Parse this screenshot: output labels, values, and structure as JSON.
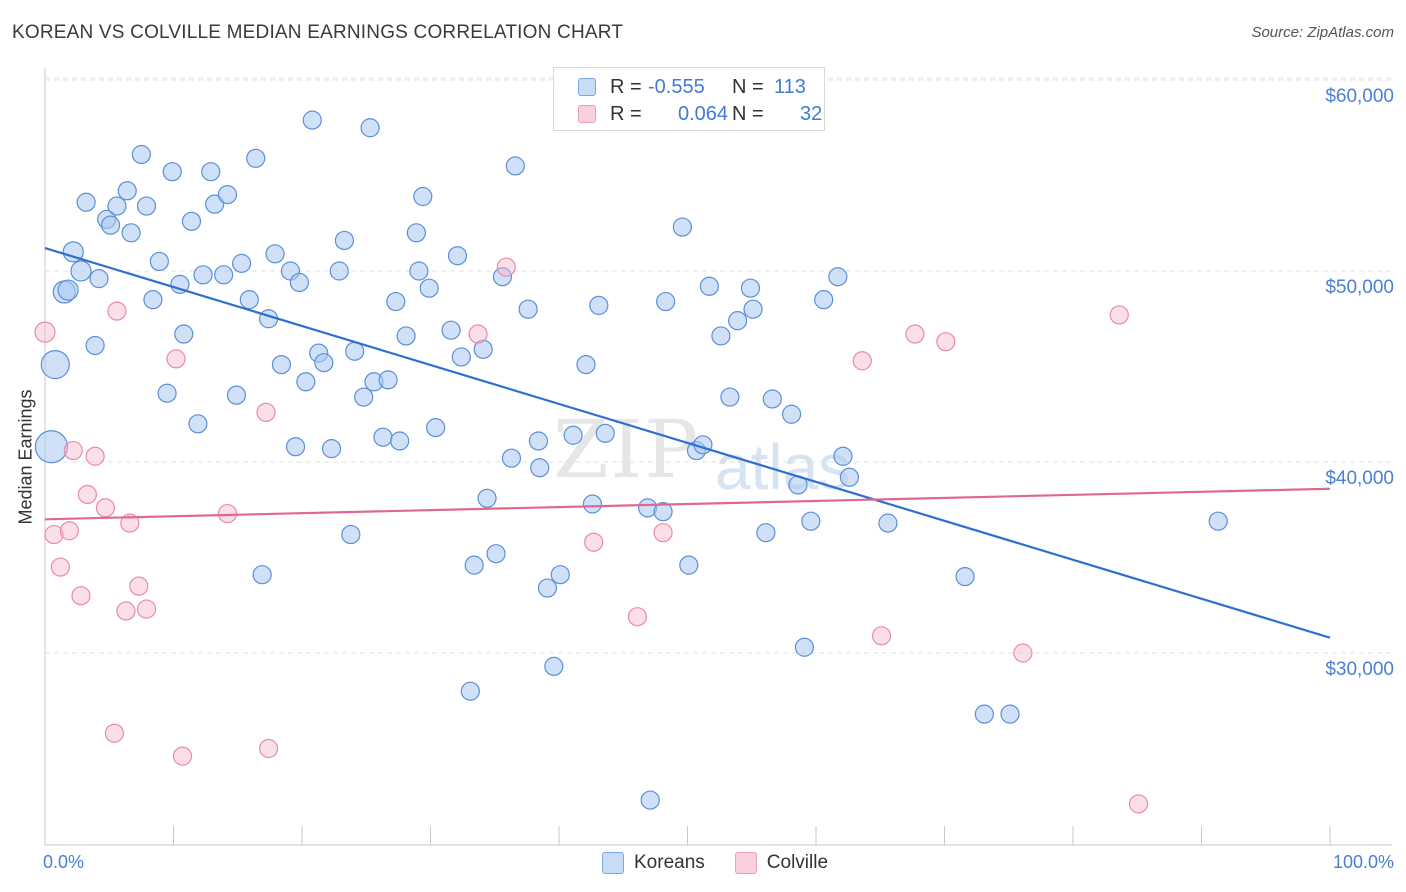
{
  "header": {
    "title": "KOREAN VS COLVILLE MEDIAN EARNINGS CORRELATION CHART",
    "source": "Source: ZipAtlas.com"
  },
  "watermark": {
    "part1": "ZIP",
    "part2": "atlas"
  },
  "legend_top": {
    "rows": [
      {
        "r_label": "R =",
        "r_value": "-0.555",
        "n_label": "N =",
        "n_value": "113",
        "color": "#a9c8f0"
      },
      {
        "r_label": "R =",
        "r_value": "0.064",
        "n_label": "N =",
        "n_value": "32",
        "color": "#f6b8cb"
      }
    ]
  },
  "bottom_legend": {
    "items": [
      {
        "label": "Koreans",
        "color": "#a9c8f0"
      },
      {
        "label": "Colville",
        "color": "#f6b8cb"
      }
    ]
  },
  "colors": {
    "blue_fill": "rgba(169,200,240,0.55)",
    "blue_stroke": "#5b8fd8",
    "blue_line": "#2f6fd0",
    "pink_fill": "rgba(246,184,203,0.45)",
    "pink_stroke": "#e98aa9",
    "pink_line": "#e0688f",
    "tick_text": "#4a7fd4",
    "grid": "#e2e2e2"
  },
  "chart_data": {
    "type": "scatter",
    "title": "KOREAN VS COLVILLE MEDIAN EARNINGS CORRELATION CHART",
    "xlabel": "",
    "ylabel": "Median Earnings",
    "xlim": [
      0,
      100
    ],
    "ylim": [
      21000,
      62000
    ],
    "x_tick_labels": [
      "0.0%",
      "100.0%"
    ],
    "y_ticks": [
      30000,
      40000,
      50000,
      60000
    ],
    "y_tick_labels": [
      "$30,000",
      "$40,000",
      "$50,000",
      "$60,000"
    ],
    "grid": "horizontal dashed",
    "legend_position": "top-center and bottom-center",
    "series": [
      {
        "name": "Koreans",
        "R": -0.555,
        "N": 113,
        "trend": [
          [
            0,
            51200
          ],
          [
            100,
            30800
          ]
        ],
        "points": [
          [
            0.5,
            40800,
            16
          ],
          [
            0.8,
            45100,
            14
          ],
          [
            1.5,
            48900,
            11
          ],
          [
            1.8,
            49000,
            10
          ],
          [
            2.2,
            51000,
            10
          ],
          [
            2.8,
            50000,
            10
          ],
          [
            3.2,
            53600,
            9
          ],
          [
            3.9,
            46100,
            9
          ],
          [
            4.2,
            49600,
            9
          ],
          [
            4.8,
            52700,
            9
          ],
          [
            5.1,
            52400,
            9
          ],
          [
            5.6,
            53400,
            9
          ],
          [
            6.4,
            54200,
            9
          ],
          [
            6.7,
            52000,
            9
          ],
          [
            7.5,
            56100,
            9
          ],
          [
            7.9,
            53400,
            9
          ],
          [
            8.4,
            48500,
            9
          ],
          [
            8.9,
            50500,
            9
          ],
          [
            9.5,
            43600,
            9
          ],
          [
            9.9,
            55200,
            9
          ],
          [
            10.5,
            49300,
            9
          ],
          [
            10.8,
            46700,
            9
          ],
          [
            11.4,
            52600,
            9
          ],
          [
            11.9,
            42000,
            9
          ],
          [
            12.3,
            49800,
            9
          ],
          [
            12.9,
            55200,
            9
          ],
          [
            13.2,
            53500,
            9
          ],
          [
            13.9,
            49800,
            9
          ],
          [
            14.2,
            54000,
            9
          ],
          [
            14.9,
            43500,
            9
          ],
          [
            15.3,
            50400,
            9
          ],
          [
            15.9,
            48500,
            9
          ],
          [
            16.4,
            55900,
            9
          ],
          [
            16.9,
            34100,
            9
          ],
          [
            17.4,
            47500,
            9
          ],
          [
            17.9,
            50900,
            9
          ],
          [
            18.4,
            45100,
            9
          ],
          [
            19.1,
            50000,
            9
          ],
          [
            19.5,
            40800,
            9
          ],
          [
            19.8,
            49400,
            9
          ],
          [
            20.3,
            44200,
            9
          ],
          [
            20.8,
            57900,
            9
          ],
          [
            21.3,
            45700,
            9
          ],
          [
            21.7,
            45200,
            9
          ],
          [
            22.3,
            40700,
            9
          ],
          [
            22.9,
            50000,
            9
          ],
          [
            23.3,
            51600,
            9
          ],
          [
            23.8,
            36200,
            9
          ],
          [
            24.1,
            45800,
            9
          ],
          [
            24.8,
            43400,
            9
          ],
          [
            25.3,
            57500,
            9
          ],
          [
            25.6,
            44200,
            9
          ],
          [
            26.3,
            41300,
            9
          ],
          [
            26.7,
            44300,
            9
          ],
          [
            27.3,
            48400,
            9
          ],
          [
            27.6,
            41100,
            9
          ],
          [
            28.1,
            46600,
            9
          ],
          [
            28.9,
            52000,
            9
          ],
          [
            29.1,
            50000,
            9
          ],
          [
            29.4,
            53900,
            9
          ],
          [
            29.9,
            49100,
            9
          ],
          [
            30.4,
            41800,
            9
          ],
          [
            31.6,
            46900,
            9
          ],
          [
            32.1,
            50800,
            9
          ],
          [
            32.4,
            45500,
            9
          ],
          [
            33.1,
            28000,
            9
          ],
          [
            33.4,
            34600,
            9
          ],
          [
            34.1,
            45900,
            9
          ],
          [
            34.4,
            38100,
            9
          ],
          [
            35.1,
            35200,
            9
          ],
          [
            35.6,
            49700,
            9
          ],
          [
            36.3,
            40200,
            9
          ],
          [
            36.6,
            55500,
            9
          ],
          [
            37.6,
            48000,
            9
          ],
          [
            38.4,
            41100,
            9
          ],
          [
            38.5,
            39700,
            9
          ],
          [
            39.1,
            33400,
            9
          ],
          [
            39.6,
            29300,
            9
          ],
          [
            40.1,
            34100,
            9
          ],
          [
            41.1,
            41400,
            9
          ],
          [
            42.1,
            45100,
            9
          ],
          [
            42.6,
            37800,
            9
          ],
          [
            43.1,
            48200,
            9
          ],
          [
            43.6,
            41500,
            9
          ],
          [
            47.1,
            22300,
            9
          ],
          [
            46.9,
            37600,
            9
          ],
          [
            48.1,
            37400,
            9
          ],
          [
            48.3,
            48400,
            9
          ],
          [
            49.6,
            52300,
            9
          ],
          [
            50.1,
            34600,
            9
          ],
          [
            50.7,
            40600,
            9
          ],
          [
            51.2,
            40900,
            9
          ],
          [
            51.7,
            49200,
            9
          ],
          [
            52.6,
            46600,
            9
          ],
          [
            53.3,
            43400,
            9
          ],
          [
            53.9,
            47400,
            9
          ],
          [
            54.9,
            49100,
            9
          ],
          [
            55.1,
            48000,
            9
          ],
          [
            56.1,
            36300,
            9
          ],
          [
            56.6,
            43300,
            9
          ],
          [
            58.1,
            42500,
            9
          ],
          [
            58.6,
            38800,
            9
          ],
          [
            59.1,
            30300,
            9
          ],
          [
            59.6,
            36900,
            9
          ],
          [
            60.6,
            48500,
            9
          ],
          [
            61.7,
            49700,
            9
          ],
          [
            62.1,
            40300,
            9
          ],
          [
            62.6,
            39200,
            9
          ],
          [
            65.6,
            36800,
            9
          ],
          [
            71.6,
            34000,
            9
          ],
          [
            73.1,
            26800,
            9
          ],
          [
            75.1,
            26800,
            9
          ],
          [
            91.3,
            36900,
            9
          ]
        ]
      },
      {
        "name": "Colville",
        "R": 0.064,
        "N": 32,
        "trend": [
          [
            0,
            37000
          ],
          [
            100,
            38600
          ]
        ],
        "points": [
          [
            0.0,
            46800,
            10
          ],
          [
            0.7,
            36200,
            9
          ],
          [
            1.2,
            34500,
            9
          ],
          [
            1.9,
            36400,
            9
          ],
          [
            2.2,
            40600,
            9
          ],
          [
            2.8,
            33000,
            9
          ],
          [
            3.3,
            38300,
            9
          ],
          [
            3.9,
            40300,
            9
          ],
          [
            4.7,
            37600,
            9
          ],
          [
            5.4,
            25800,
            9
          ],
          [
            5.6,
            47900,
            9
          ],
          [
            6.3,
            32200,
            9
          ],
          [
            6.6,
            36800,
            9
          ],
          [
            7.3,
            33500,
            9
          ],
          [
            7.9,
            32300,
            9
          ],
          [
            10.2,
            45400,
            9
          ],
          [
            10.7,
            24600,
            9
          ],
          [
            14.2,
            37300,
            9
          ],
          [
            17.2,
            42600,
            9
          ],
          [
            17.4,
            25000,
            9
          ],
          [
            33.7,
            46700,
            9
          ],
          [
            35.9,
            50200,
            9
          ],
          [
            42.7,
            35800,
            9
          ],
          [
            46.1,
            31900,
            9
          ],
          [
            48.1,
            36300,
            9
          ],
          [
            63.6,
            45300,
            9
          ],
          [
            65.1,
            30900,
            9
          ],
          [
            67.7,
            46700,
            9
          ],
          [
            70.1,
            46300,
            9
          ],
          [
            76.1,
            30000,
            9
          ],
          [
            83.6,
            47700,
            9
          ],
          [
            85.1,
            22100,
            9
          ]
        ]
      }
    ]
  }
}
